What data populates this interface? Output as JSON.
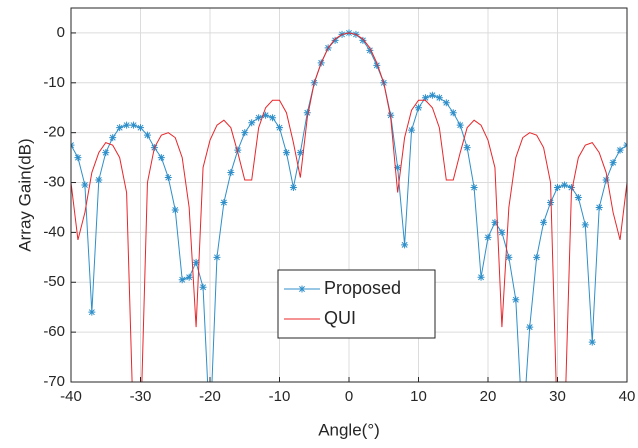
{
  "chart_data": {
    "type": "line",
    "xlabel": "Angle(°)",
    "ylabel": "Array Gain(dB)",
    "x": [
      -40,
      -39,
      -38,
      -37,
      -36,
      -35,
      -34,
      -33,
      -32,
      -31,
      -30,
      -29,
      -28,
      -27,
      -26,
      -25,
      -24,
      -23,
      -22,
      -21,
      -20,
      -19,
      -18,
      -17,
      -16,
      -15,
      -14,
      -13,
      -12,
      -11,
      -10,
      -9,
      -8,
      -7,
      -6,
      -5,
      -4,
      -3,
      -2,
      -1,
      0,
      1,
      2,
      3,
      4,
      5,
      6,
      7,
      8,
      9,
      10,
      11,
      12,
      13,
      14,
      15,
      16,
      17,
      18,
      19,
      20,
      21,
      22,
      23,
      24,
      25,
      26,
      27,
      28,
      29,
      30,
      31,
      32,
      33,
      34,
      35,
      36,
      37,
      38,
      39,
      40
    ],
    "series": [
      {
        "name": "Proposed",
        "color": "#2f8fc9",
        "marker": "asterisk",
        "values": [
          -22.5,
          -25,
          -30.5,
          -56,
          -29.5,
          -24,
          -21,
          -19,
          -18.5,
          -18.5,
          -19,
          -20.5,
          -23,
          -25,
          -29,
          -35.5,
          -49.5,
          -49,
          -46,
          -51,
          -80,
          -45,
          -34,
          -28,
          -23.5,
          -20,
          -18,
          -17,
          -16.5,
          -17,
          -19,
          -24,
          -31,
          -24,
          -16,
          -10,
          -6,
          -3,
          -1.5,
          -0.3,
          0,
          -0.3,
          -1.5,
          -3.5,
          -6.5,
          -10,
          -16.5,
          -27,
          -42.5,
          -19.5,
          -15,
          -13,
          -12.5,
          -13,
          -14,
          -16,
          -18.5,
          -23,
          -31,
          -49,
          -41,
          -38,
          -40,
          -45,
          -53.5,
          -80,
          -59,
          -45,
          -38,
          -34,
          -31,
          -30.5,
          -31,
          -33,
          -38.5,
          -62,
          -35,
          -29.5,
          -26,
          -23.5,
          -22.5
        ]
      },
      {
        "name": "QUI",
        "color": "#e8262a",
        "marker": "none",
        "values": [
          -30,
          -41.5,
          -36,
          -28,
          -24,
          -22,
          -22.5,
          -25,
          -32,
          -80,
          -80,
          -30,
          -23,
          -20.5,
          -20,
          -21,
          -25,
          -35,
          -59,
          -27,
          -21.5,
          -18.5,
          -17.5,
          -19,
          -24,
          -29.5,
          -29.5,
          -19,
          -15,
          -13.5,
          -13.5,
          -16,
          -22,
          -29,
          -17,
          -10,
          -6,
          -3,
          -1.2,
          -0.3,
          0,
          -0.3,
          -1.2,
          -3,
          -6,
          -10,
          -17,
          -32,
          -21,
          -15.5,
          -13.5,
          -13.5,
          -15,
          -19,
          -29.5,
          -29.5,
          -24,
          -19,
          -17.5,
          -18.5,
          -21.5,
          -27,
          -59,
          -35,
          -25,
          -21,
          -20,
          -20.5,
          -23,
          -30,
          -80,
          -80,
          -32,
          -25,
          -22.5,
          -22,
          -24,
          -28,
          -36,
          -41.5,
          -30
        ]
      }
    ],
    "xlim": [
      -40,
      40
    ],
    "ylim": [
      -70,
      5
    ],
    "xticks": [
      -40,
      -30,
      -20,
      -10,
      0,
      10,
      20,
      30,
      40
    ],
    "yticks": [
      -70,
      -60,
      -50,
      -40,
      -30,
      -20,
      -10,
      0
    ],
    "grid": true,
    "legend": "center"
  }
}
